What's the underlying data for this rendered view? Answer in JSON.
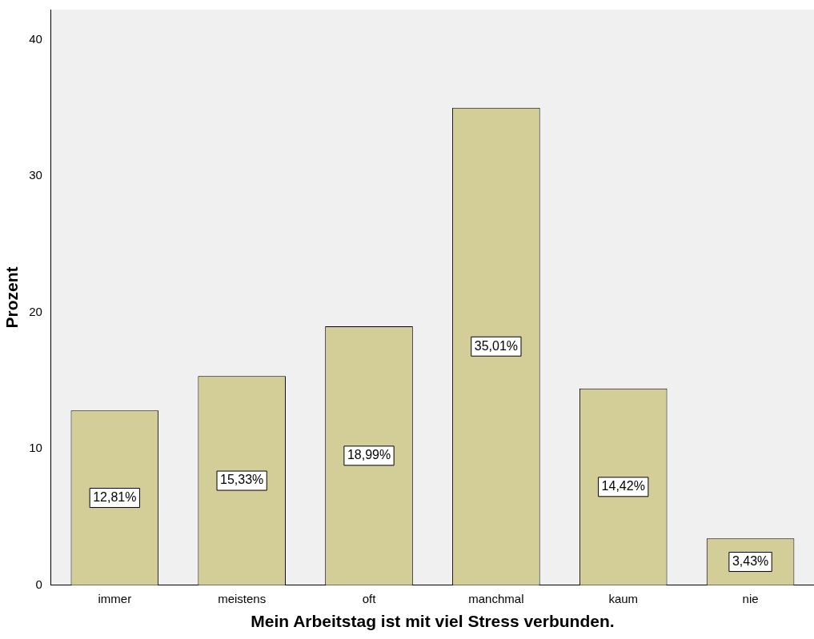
{
  "chart_data": {
    "type": "bar",
    "xlabel": "Mein Arbeitstag ist mit viel Stress verbunden.",
    "ylabel": "Prozent",
    "categories": [
      "immer",
      "meistens",
      "oft",
      "manchmal",
      "kaum",
      "nie"
    ],
    "values": [
      12.81,
      15.33,
      18.99,
      35.01,
      14.42,
      3.43
    ],
    "value_labels": [
      "12,81%",
      "15,33%",
      "18,99%",
      "35,01%",
      "14,42%",
      "3,43%"
    ],
    "color": "#d3ce98",
    "ylim": [
      0,
      42.2
    ],
    "yticks": [
      0,
      10,
      20,
      30,
      40
    ],
    "grid": false,
    "legend": false
  }
}
